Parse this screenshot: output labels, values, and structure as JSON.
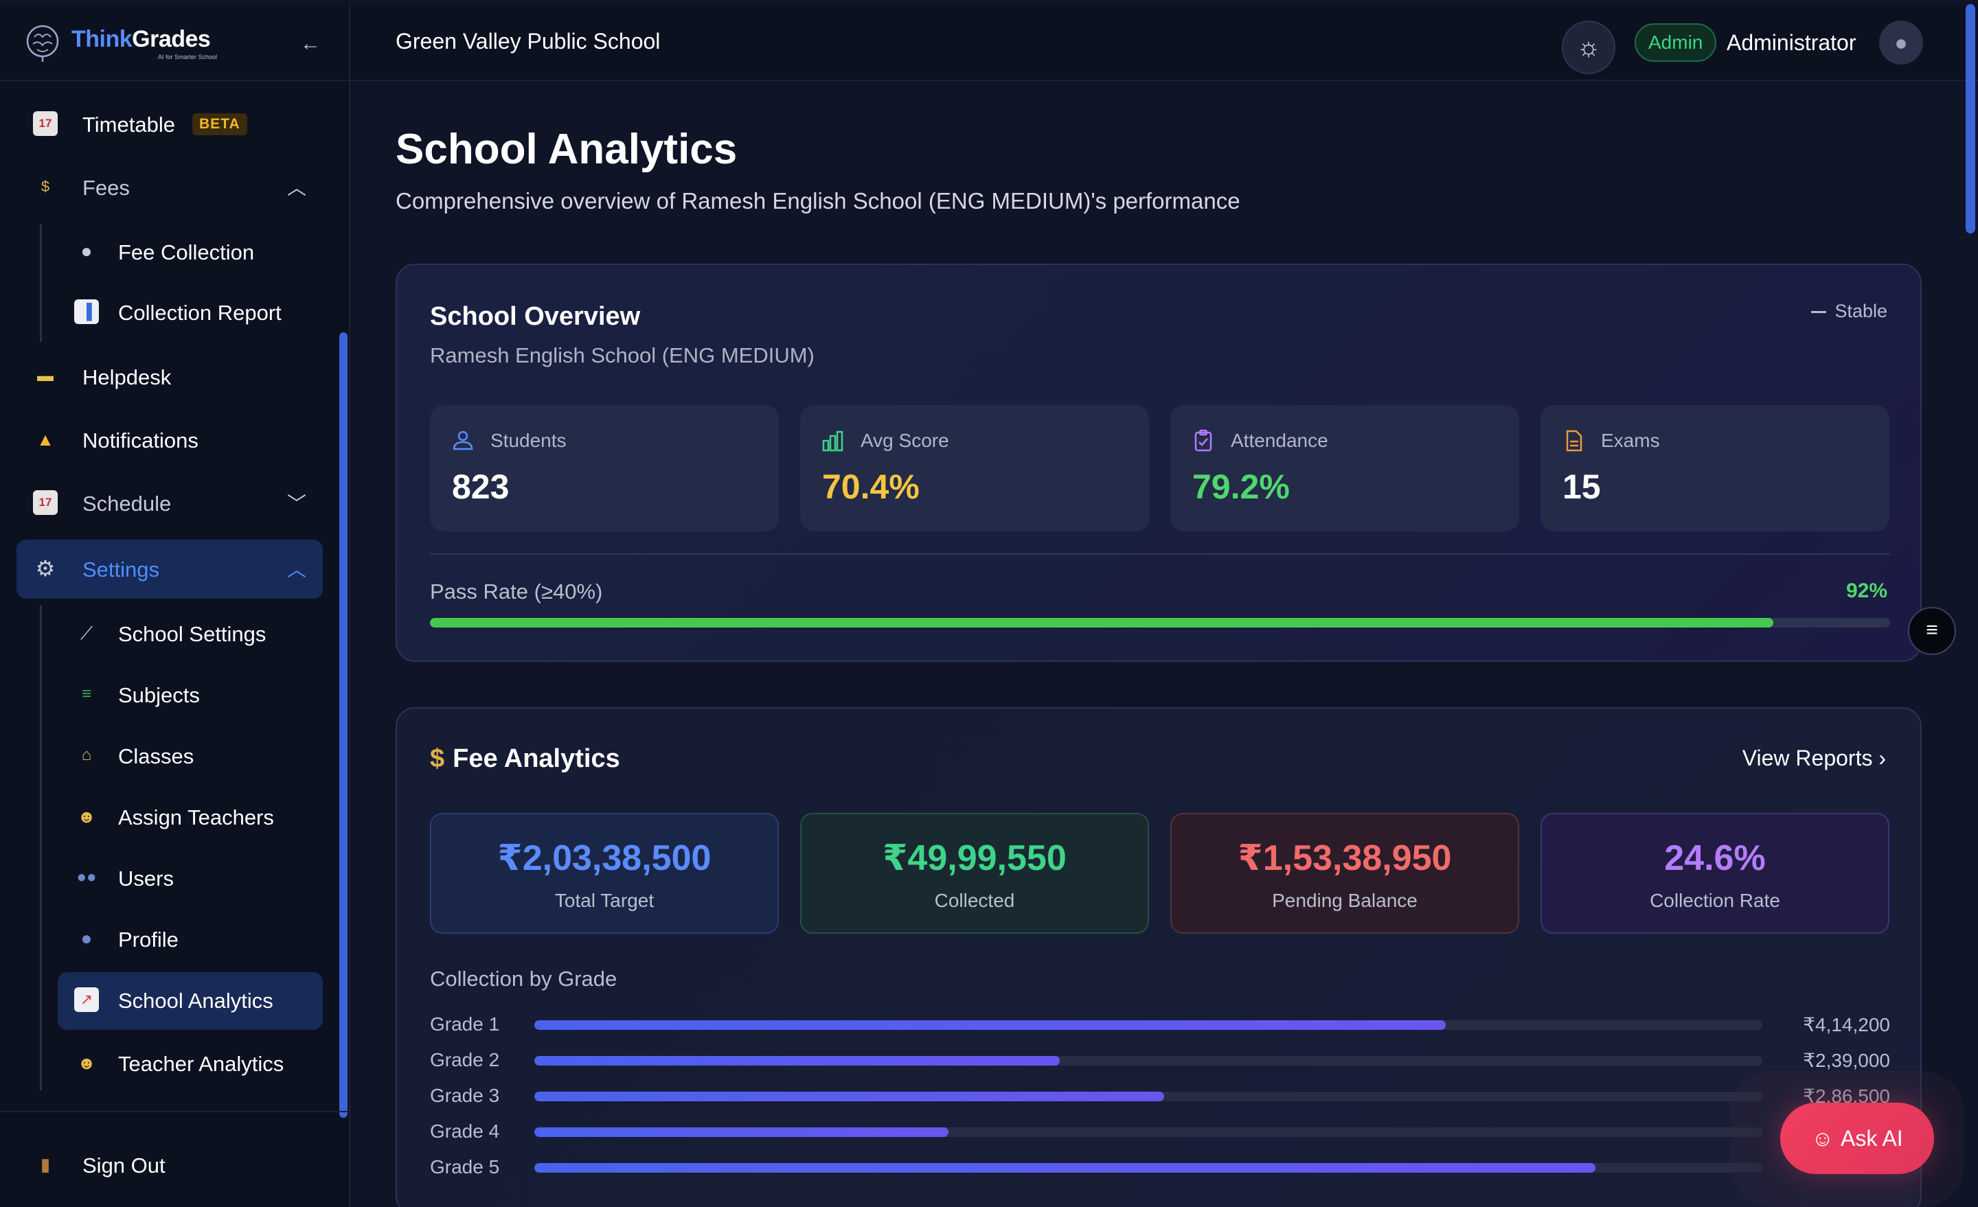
{
  "brand": {
    "name_part1": "Think",
    "name_part2": "Grades",
    "tagline": "AI for Smarter School"
  },
  "sidebar": {
    "items": [
      {
        "label": "Timetable",
        "badge": "BETA",
        "icon": "calendar-icon"
      },
      {
        "label": "Fees",
        "icon": "money-bag-icon",
        "expanded": true
      },
      {
        "label": "Fee Collection",
        "icon": "coin-icon"
      },
      {
        "label": "Collection Report",
        "icon": "bar-chart-icon"
      },
      {
        "label": "Helpdesk",
        "icon": "ticket-icon"
      },
      {
        "label": "Notifications",
        "icon": "bell-icon"
      },
      {
        "label": "Schedule",
        "icon": "calendar-icon",
        "expanded": false
      },
      {
        "label": "Settings",
        "icon": "gear-icon",
        "expanded": true,
        "active": true
      },
      {
        "label": "School Settings",
        "icon": "wrench-icon"
      },
      {
        "label": "Subjects",
        "icon": "books-icon"
      },
      {
        "label": "Classes",
        "icon": "school-icon"
      },
      {
        "label": "Assign Teachers",
        "icon": "teacher-icon"
      },
      {
        "label": "Users",
        "icon": "users-icon"
      },
      {
        "label": "Profile",
        "icon": "person-icon"
      },
      {
        "label": "School Analytics",
        "icon": "line-chart-icon",
        "active": true
      },
      {
        "label": "Teacher Analytics",
        "icon": "teacher-icon"
      }
    ],
    "sign_out": "Sign Out"
  },
  "header": {
    "school_name": "Green Valley Public School",
    "role": "Admin",
    "user": "Administrator"
  },
  "page": {
    "title": "School Analytics",
    "subtitle": "Comprehensive overview of Ramesh English School (ENG MEDIUM)'s performance"
  },
  "overview": {
    "title": "School Overview",
    "subtitle": "Ramesh English School (ENG MEDIUM)",
    "status": "Stable",
    "stats": [
      {
        "label": "Students",
        "value": "823",
        "color": "#ffffff"
      },
      {
        "label": "Avg Score",
        "value": "70.4%",
        "color": "#f5c542"
      },
      {
        "label": "Attendance",
        "value": "79.2%",
        "color": "#4fd86d"
      },
      {
        "label": "Exams",
        "value": "15",
        "color": "#ffffff"
      }
    ],
    "pass_rate": {
      "label": "Pass Rate (≥40%)",
      "value": "92%",
      "fraction": 0.92
    }
  },
  "fees": {
    "title": "Fee Analytics",
    "view_reports": "View Reports",
    "stats": [
      {
        "value": "₹2,03,38,500",
        "label": "Total Target",
        "color": "#5b8cff"
      },
      {
        "value": "₹49,99,550",
        "label": "Collected",
        "color": "#3ed48a"
      },
      {
        "value": "₹1,53,38,950",
        "label": "Pending Balance",
        "color": "#f26b6b"
      },
      {
        "value": "24.6%",
        "label": "Collection Rate",
        "color": "#b47cff"
      }
    ],
    "by_grade_title": "Collection by Grade",
    "grades": [
      {
        "label": "Grade 1",
        "value": "₹4,14,200",
        "fraction": 0.742
      },
      {
        "label": "Grade 2",
        "value": "₹2,39,000",
        "fraction": 0.428
      },
      {
        "label": "Grade 3",
        "value": "₹2,86,500",
        "fraction": 0.513
      },
      {
        "label": "Grade 4",
        "value": "",
        "fraction": 0.337
      },
      {
        "label": "Grade 5",
        "value": "",
        "fraction": 0.864
      }
    ]
  },
  "ask_ai": "Ask AI"
}
